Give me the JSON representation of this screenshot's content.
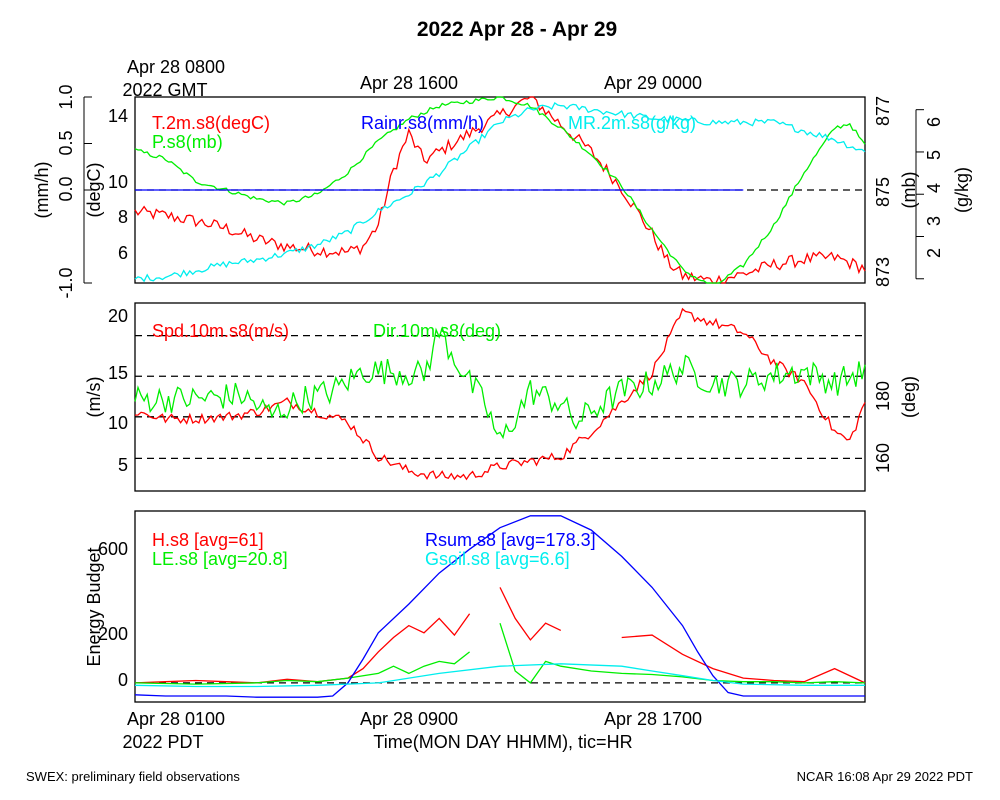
{
  "title": "2022 Apr 28 - Apr 29",
  "top_axis": {
    "labels": [
      {
        "line1": "Apr 28 0800",
        "line2": "2022 GMT"
      },
      {
        "line1": "Apr 28 1600",
        "line2": ""
      },
      {
        "line1": "Apr 29 0000",
        "line2": ""
      }
    ]
  },
  "bottom_axis": {
    "labels": [
      {
        "line1": "Apr 28 0100",
        "line2": "2022 PDT"
      },
      {
        "line1": "Apr 28 0900",
        "line2": ""
      },
      {
        "line1": "Apr 28 1700",
        "line2": ""
      }
    ],
    "xlabel": "Time(MON DAY HHMM), tic=HR"
  },
  "footer": {
    "left": "SWEX: preliminary field observations",
    "right": "NCAR 16:08 Apr 29 2022 PDT"
  },
  "colors": {
    "red": "#ff0000",
    "green": "#00ee00",
    "blue": "#0000ff",
    "cyan": "#00eeee",
    "black": "#000000"
  },
  "chart_data": [
    {
      "type": "line",
      "panel": "top",
      "x_unit": "hours since Apr 28 0100 PDT",
      "xlim": [
        0,
        24
      ],
      "axes": {
        "rain": {
          "label": "(mm/h)",
          "ticks": [
            -1.0,
            0.0,
            0.5,
            1.0
          ],
          "tick_labels": [
            "-1.0",
            "0.0",
            "0.5",
            "1.0"
          ],
          "lim": [
            -1,
            1
          ]
        },
        "temp": {
          "label": "(degC)",
          "ticks": [
            6,
            8,
            10,
            14
          ],
          "tick_labels": [
            "6",
            "8",
            "10",
            "14"
          ],
          "lim": [
            4.8,
            15.0
          ]
        },
        "press": {
          "label": "(mb)",
          "ticks": [
            873,
            875,
            877
          ],
          "tick_labels": [
            "873",
            "875",
            "877"
          ],
          "lim": [
            873.0,
            877.2
          ]
        },
        "mr": {
          "label": "(g/kg)",
          "ticks": [
            2,
            3,
            4,
            5,
            6
          ],
          "tick_labels": [
            "2",
            "3",
            "4",
            "5",
            "6"
          ],
          "lim": [
            1.9,
            6.3
          ]
        }
      },
      "legend": [
        {
          "text": "T.2m.s8(degC)",
          "color": "#ff0000"
        },
        {
          "text": "P.s8(mb)",
          "color": "#00ee00"
        },
        {
          "text": "Rainr.s8(mm/h)",
          "color": "#0000ff"
        },
        {
          "text": "MR.2m.s8(g/kg)",
          "color": "#00eeee"
        }
      ],
      "dashed_lines": [
        {
          "axis": "rain",
          "value": 0.0
        }
      ],
      "series": [
        {
          "name": "T.2m.s8(degC)",
          "axis": "temp",
          "color": "#ff0000",
          "noise": 0.35,
          "x": [
            0,
            1,
            2,
            3,
            4,
            5,
            6,
            7,
            7.5,
            8,
            8.5,
            9,
            9.5,
            10,
            11,
            12,
            13,
            14,
            15,
            16,
            17,
            17.5,
            18,
            19,
            20,
            21,
            22,
            23,
            24
          ],
          "y": [
            8.7,
            8.5,
            8.2,
            7.8,
            7.2,
            6.8,
            6.6,
            6.5,
            6.8,
            8.0,
            11.0,
            13.0,
            11.5,
            12.0,
            13.0,
            14.0,
            15.0,
            13.5,
            12.0,
            10.0,
            7.5,
            6.0,
            5.2,
            4.9,
            5.3,
            5.8,
            6.1,
            6.2,
            5.6
          ]
        },
        {
          "name": "P.s8(mb)",
          "axis": "press",
          "color": "#00ee00",
          "noise": 0.05,
          "x": [
            0,
            1,
            2,
            3,
            4,
            5,
            6,
            7,
            8,
            9,
            10,
            11,
            12,
            13,
            14,
            15,
            16,
            17,
            18,
            19,
            20,
            21,
            22,
            23,
            23.5,
            24
          ],
          "y": [
            876.0,
            875.8,
            875.3,
            875.1,
            874.9,
            874.8,
            875.0,
            875.5,
            876.2,
            876.7,
            877.0,
            877.1,
            877.2,
            877.0,
            876.5,
            875.9,
            875.2,
            874.2,
            873.3,
            872.9,
            873.4,
            874.3,
            875.5,
            876.5,
            876.6,
            876.1
          ]
        },
        {
          "name": "Rainr.s8(mm/h)",
          "axis": "rain",
          "color": "#0000ff",
          "noise": 0,
          "x": [
            0,
            20,
            24
          ],
          "y": [
            0,
            0,
            0
          ],
          "x_end": 20
        },
        {
          "name": "MR.2m.s8(g/kg)",
          "axis": "mr",
          "color": "#00eeee",
          "noise": 0.08,
          "x": [
            0,
            1,
            2,
            3,
            4,
            5,
            6,
            7,
            8,
            9,
            10,
            11,
            12,
            13,
            14,
            15,
            16,
            17,
            18,
            19,
            20,
            21,
            22,
            23,
            24
          ],
          "y": [
            2.0,
            2.05,
            2.2,
            2.35,
            2.45,
            2.6,
            2.8,
            3.1,
            3.6,
            4.0,
            4.5,
            5.1,
            5.7,
            6.0,
            6.1,
            6.0,
            5.9,
            5.8,
            5.75,
            5.7,
            5.7,
            5.7,
            5.5,
            5.3,
            5.0
          ]
        }
      ]
    },
    {
      "type": "line",
      "panel": "middle",
      "x_unit": "hours since Apr 28 0100 PDT",
      "xlim": [
        0,
        24
      ],
      "axes": {
        "spd": {
          "label": "(m/s)",
          "ticks": [
            5,
            10,
            15,
            20
          ],
          "tick_labels": [
            "5",
            "10",
            "15",
            "20"
          ],
          "lim": [
            2,
            21
          ]
        },
        "dir": {
          "label": "(deg)",
          "ticks": [
            160,
            180
          ],
          "tick_labels": [
            "160",
            "180"
          ],
          "lim": [
            153,
            200
          ]
        }
      },
      "legend": [
        {
          "text": "Spd.10m.s8(m/s)",
          "color": "#ff0000"
        },
        {
          "text": "Dir.10m.s8(deg)",
          "color": "#00ee00"
        }
      ],
      "dashed_lines": [
        {
          "axis": "spd",
          "value": 5.3
        },
        {
          "axis": "spd",
          "value": 9.5
        },
        {
          "axis": "spd",
          "value": 13.6
        },
        {
          "axis": "spd",
          "value": 17.7
        }
      ],
      "series": [
        {
          "name": "Spd.10m.s8(m/s)",
          "axis": "spd",
          "color": "#ff0000",
          "noise": 0.5,
          "x": [
            0,
            1,
            2,
            3,
            4,
            5,
            6,
            7,
            8,
            9,
            10,
            11,
            12,
            13,
            14,
            15,
            16,
            17,
            18,
            19,
            20,
            21,
            22,
            23,
            23.5,
            24
          ],
          "y": [
            10.0,
            9.3,
            9.3,
            9.5,
            10.0,
            11.0,
            10.0,
            9.0,
            5.5,
            4.0,
            3.5,
            3.5,
            4.5,
            5.0,
            5.5,
            8.0,
            11.0,
            14.0,
            20.0,
            19.0,
            18.0,
            15.0,
            13.0,
            8.0,
            7.0,
            11.0
          ]
        },
        {
          "name": "Dir.10m.s8(deg)",
          "axis": "dir",
          "color": "#00ee00",
          "noise": 3.5,
          "x": [
            0,
            2,
            3.5,
            4.5,
            5.5,
            6.5,
            7.5,
            8.5,
            9.5,
            10,
            11,
            11.5,
            12,
            13,
            14,
            14.5,
            15,
            16,
            17,
            18,
            19,
            20,
            21,
            22,
            23,
            24
          ],
          "y": [
            176,
            176,
            177,
            172,
            176,
            178,
            183,
            183,
            182,
            193,
            180,
            175,
            165,
            178,
            175,
            170,
            173,
            178,
            180,
            184,
            180,
            180,
            182,
            183,
            180,
            183
          ]
        }
      ]
    },
    {
      "type": "line",
      "panel": "bottom",
      "x_unit": "hours since Apr 28 0100 PDT",
      "xlim": [
        0,
        24
      ],
      "axes": {
        "energy": {
          "label": "Energy Budget",
          "ticks": [
            0,
            200,
            600
          ],
          "tick_labels": [
            "0",
            "200",
            "600"
          ],
          "lim": [
            -80,
            720
          ]
        }
      },
      "legend": [
        {
          "text": "H.s8 [avg=61]",
          "color": "#ff0000"
        },
        {
          "text": "LE.s8 [avg=20.8]",
          "color": "#00ee00"
        },
        {
          "text": "Rsum.s8 [avg=178.3]",
          "color": "#0000ff"
        },
        {
          "text": "Gsoil.s8 [avg=6.6]",
          "color": "#00eeee"
        }
      ],
      "dashed_lines": [
        {
          "axis": "energy",
          "value": 0
        }
      ],
      "series": [
        {
          "name": "H.s8 [avg=61]",
          "axis": "energy",
          "color": "#ff0000",
          "segments": [
            {
              "x": [
                0,
                1,
                2,
                3,
                4,
                5,
                6,
                7,
                7.5,
                8,
                8.5,
                9,
                9.5,
                10,
                10.5,
                11
              ],
              "y": [
                0,
                5,
                10,
                5,
                0,
                15,
                5,
                20,
                60,
                130,
                190,
                240,
                210,
                270,
                200,
                290
              ]
            },
            {
              "x": [
                12,
                12.5,
                13,
                13.5,
                14
              ],
              "y": [
                400,
                270,
                180,
                250,
                220
              ]
            },
            {
              "x": [
                16,
                17,
                18,
                19,
                20,
                21,
                22,
                23,
                24
              ],
              "y": [
                190,
                200,
                120,
                60,
                20,
                10,
                5,
                60,
                0
              ]
            }
          ]
        },
        {
          "name": "LE.s8 [avg=20.8]",
          "axis": "energy",
          "color": "#00ee00",
          "segments": [
            {
              "x": [
                0,
                2,
                4,
                5,
                6,
                7,
                8,
                8.5,
                9,
                9.5,
                10,
                10.5,
                11
              ],
              "y": [
                0,
                -5,
                0,
                10,
                5,
                20,
                40,
                70,
                40,
                70,
                90,
                80,
                130
              ]
            },
            {
              "x": [
                12,
                12.5,
                13,
                13.5,
                14,
                15,
                16,
                17,
                18,
                19,
                20,
                21,
                22,
                23,
                24
              ],
              "y": [
                250,
                50,
                0,
                90,
                70,
                50,
                40,
                35,
                25,
                10,
                5,
                5,
                0,
                5,
                0
              ]
            }
          ]
        },
        {
          "name": "Rsum.s8 [avg=178.3]",
          "axis": "energy",
          "color": "#0000ff",
          "segments": [
            {
              "x": [
                0,
                1,
                2,
                3,
                4,
                5,
                6,
                6.5,
                7,
                7.5,
                8,
                9,
                10,
                11,
                12,
                13,
                14,
                15,
                16,
                17,
                18,
                18.5,
                19,
                19.5,
                20,
                21,
                22,
                23,
                24
              ],
              "y": [
                -50,
                -55,
                -55,
                -55,
                -60,
                -60,
                -60,
                -55,
                0,
                100,
                210,
                330,
                460,
                560,
                650,
                700,
                700,
                640,
                530,
                400,
                240,
                130,
                30,
                -40,
                -55,
                -55,
                -55,
                -55,
                -55
              ]
            }
          ]
        },
        {
          "name": "Gsoil.s8 [avg=6.6]",
          "axis": "energy",
          "color": "#00eeee",
          "segments": [
            {
              "x": [
                0,
                2,
                4,
                6,
                8,
                10,
                12,
                14,
                16,
                17,
                18,
                19,
                20,
                22,
                24
              ],
              "y": [
                -10,
                -15,
                -15,
                -10,
                0,
                40,
                70,
                80,
                70,
                50,
                30,
                10,
                -5,
                -10,
                -10
              ]
            }
          ]
        }
      ]
    }
  ]
}
